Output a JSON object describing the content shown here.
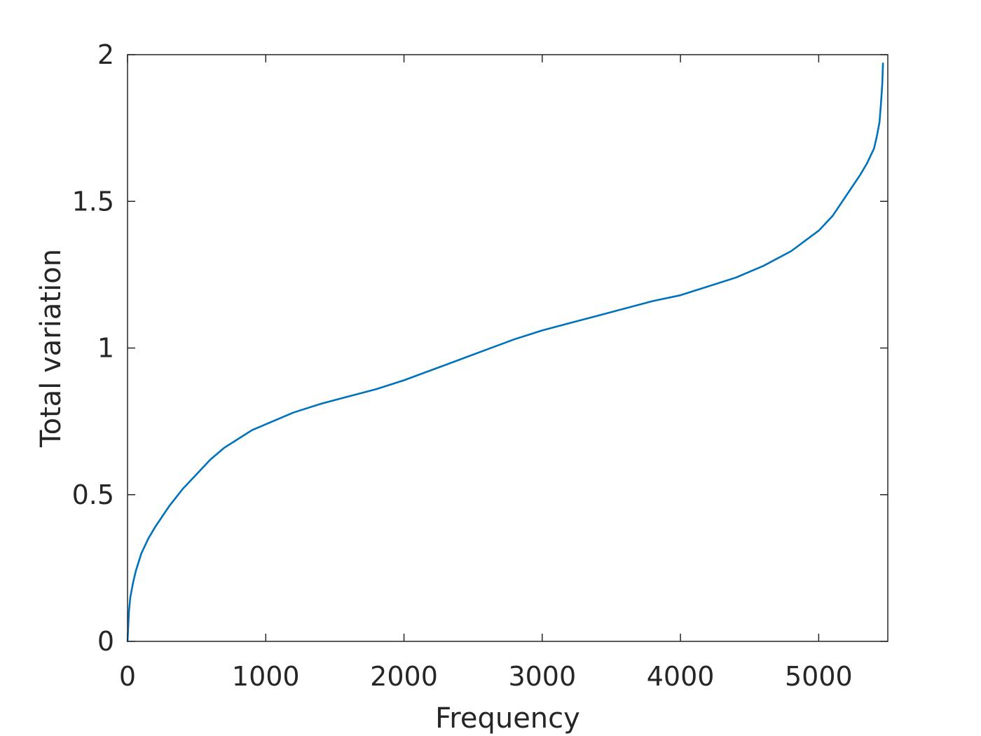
{
  "chart_data": {
    "type": "line",
    "title": "",
    "xlabel": "Frequency",
    "ylabel": "Total variation",
    "xlim": [
      0,
      5500
    ],
    "ylim": [
      0,
      2
    ],
    "x_ticks": [
      0,
      1000,
      2000,
      3000,
      4000,
      5000
    ],
    "x_tick_labels": [
      "0",
      "1000",
      "2000",
      "3000",
      "4000",
      "5000"
    ],
    "y_ticks": [
      0,
      0.5,
      1,
      1.5,
      2
    ],
    "y_tick_labels": [
      "0",
      "0.5",
      "1",
      "1.5",
      "2"
    ],
    "grid": false,
    "series": [
      {
        "color": "#0072BD",
        "x": [
          0,
          5,
          10,
          20,
          40,
          60,
          100,
          150,
          200,
          300,
          400,
          500,
          600,
          700,
          800,
          900,
          1000,
          1200,
          1400,
          1600,
          1800,
          2000,
          2200,
          2400,
          2600,
          2800,
          3000,
          3200,
          3400,
          3600,
          3800,
          4000,
          4200,
          4400,
          4600,
          4800,
          5000,
          5100,
          5200,
          5300,
          5350,
          5400,
          5420,
          5440,
          5450,
          5460,
          5465
        ],
        "y": [
          0.0,
          0.05,
          0.1,
          0.15,
          0.2,
          0.24,
          0.3,
          0.35,
          0.39,
          0.46,
          0.52,
          0.57,
          0.62,
          0.66,
          0.69,
          0.72,
          0.74,
          0.78,
          0.81,
          0.835,
          0.86,
          0.89,
          0.925,
          0.96,
          0.995,
          1.03,
          1.06,
          1.085,
          1.11,
          1.135,
          1.16,
          1.18,
          1.21,
          1.24,
          1.28,
          1.33,
          1.4,
          1.45,
          1.52,
          1.59,
          1.63,
          1.68,
          1.72,
          1.77,
          1.83,
          1.9,
          1.97
        ]
      }
    ]
  }
}
